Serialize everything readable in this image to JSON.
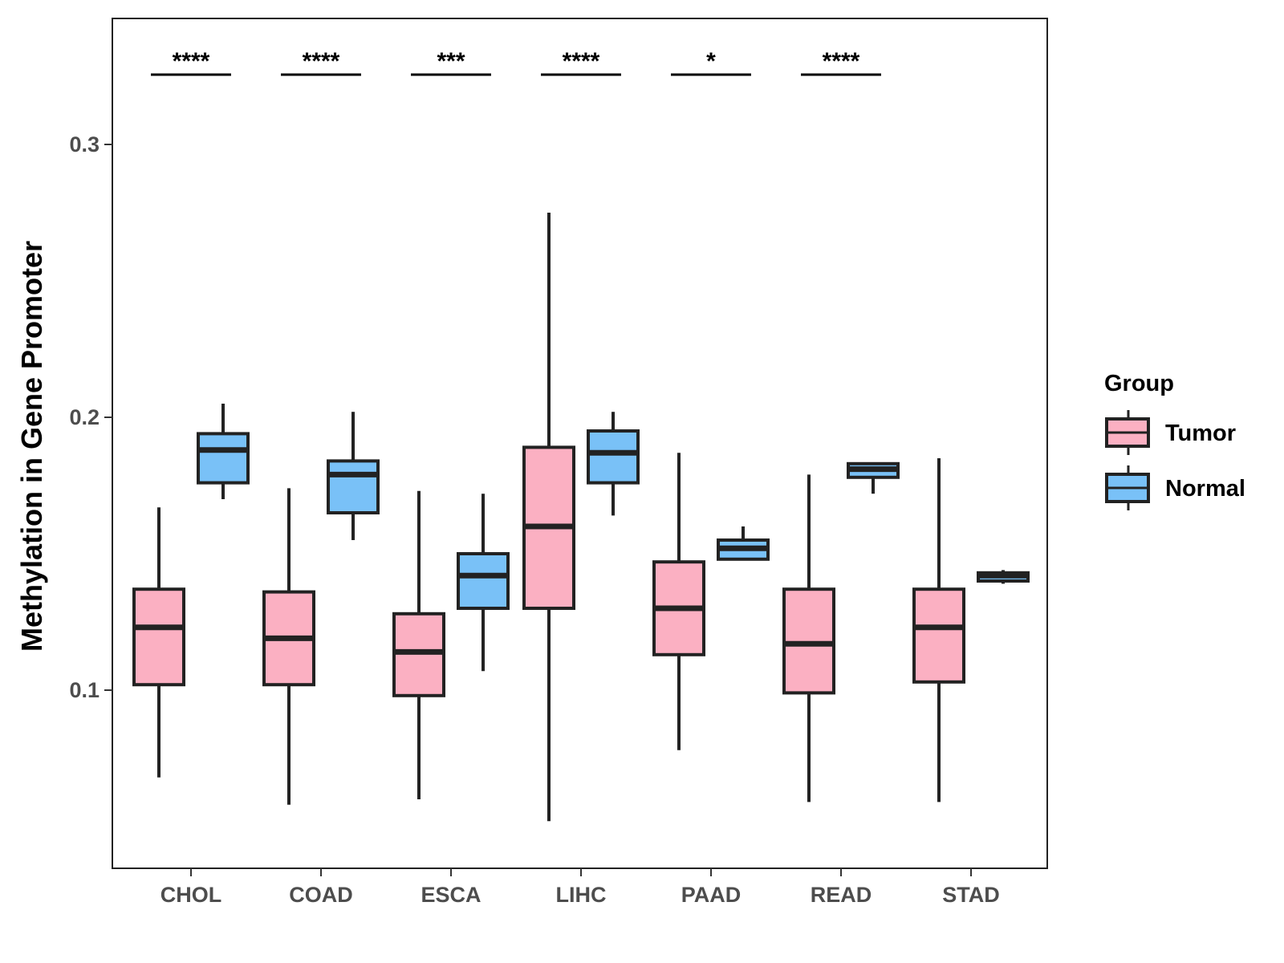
{
  "chart_data": {
    "type": "boxplot",
    "title": "",
    "xlabel": "",
    "ylabel": "Methylation in Gene Promoter",
    "ylim": [
      0.035,
      0.345
    ],
    "yticks": [
      0.1,
      0.2,
      0.3
    ],
    "ytick_labels": [
      "0.1",
      "0.2",
      "0.3"
    ],
    "grid": false,
    "legend": {
      "title": "Group",
      "placement": "right",
      "entries": [
        {
          "label": "Tumor",
          "color": "#fbb0c2"
        },
        {
          "label": "Normal",
          "color": "#79c1f7"
        }
      ]
    },
    "colors": {
      "Tumor": "#fbb0c2",
      "Normal": "#79c1f7",
      "outline": "#222222"
    },
    "categories": [
      "CHOL",
      "COAD",
      "ESCA",
      "LIHC",
      "PAAD",
      "READ",
      "STAD"
    ],
    "significance": [
      "****",
      "****",
      "***",
      "****",
      "*",
      "****",
      ""
    ],
    "series": [
      {
        "name": "Tumor",
        "boxes": [
          {
            "min": 0.068,
            "q1": 0.102,
            "median": 0.123,
            "q3": 0.137,
            "max": 0.167
          },
          {
            "min": 0.058,
            "q1": 0.102,
            "median": 0.119,
            "q3": 0.136,
            "max": 0.174
          },
          {
            "min": 0.06,
            "q1": 0.098,
            "median": 0.114,
            "q3": 0.128,
            "max": 0.173
          },
          {
            "min": 0.052,
            "q1": 0.13,
            "median": 0.16,
            "q3": 0.189,
            "max": 0.275
          },
          {
            "min": 0.078,
            "q1": 0.113,
            "median": 0.13,
            "q3": 0.147,
            "max": 0.187
          },
          {
            "min": 0.059,
            "q1": 0.099,
            "median": 0.117,
            "q3": 0.137,
            "max": 0.179
          },
          {
            "min": 0.059,
            "q1": 0.103,
            "median": 0.123,
            "q3": 0.137,
            "max": 0.185
          }
        ]
      },
      {
        "name": "Normal",
        "boxes": [
          {
            "min": 0.17,
            "q1": 0.176,
            "median": 0.188,
            "q3": 0.194,
            "max": 0.205
          },
          {
            "min": 0.155,
            "q1": 0.165,
            "median": 0.179,
            "q3": 0.184,
            "max": 0.202
          },
          {
            "min": 0.107,
            "q1": 0.13,
            "median": 0.142,
            "q3": 0.15,
            "max": 0.172
          },
          {
            "min": 0.164,
            "q1": 0.176,
            "median": 0.187,
            "q3": 0.195,
            "max": 0.202
          },
          {
            "min": 0.148,
            "q1": 0.148,
            "median": 0.152,
            "q3": 0.155,
            "max": 0.16
          },
          {
            "min": 0.172,
            "q1": 0.178,
            "median": 0.181,
            "q3": 0.183,
            "max": 0.183
          },
          {
            "min": 0.139,
            "q1": 0.14,
            "median": 0.142,
            "q3": 0.143,
            "max": 0.144
          }
        ]
      }
    ]
  }
}
